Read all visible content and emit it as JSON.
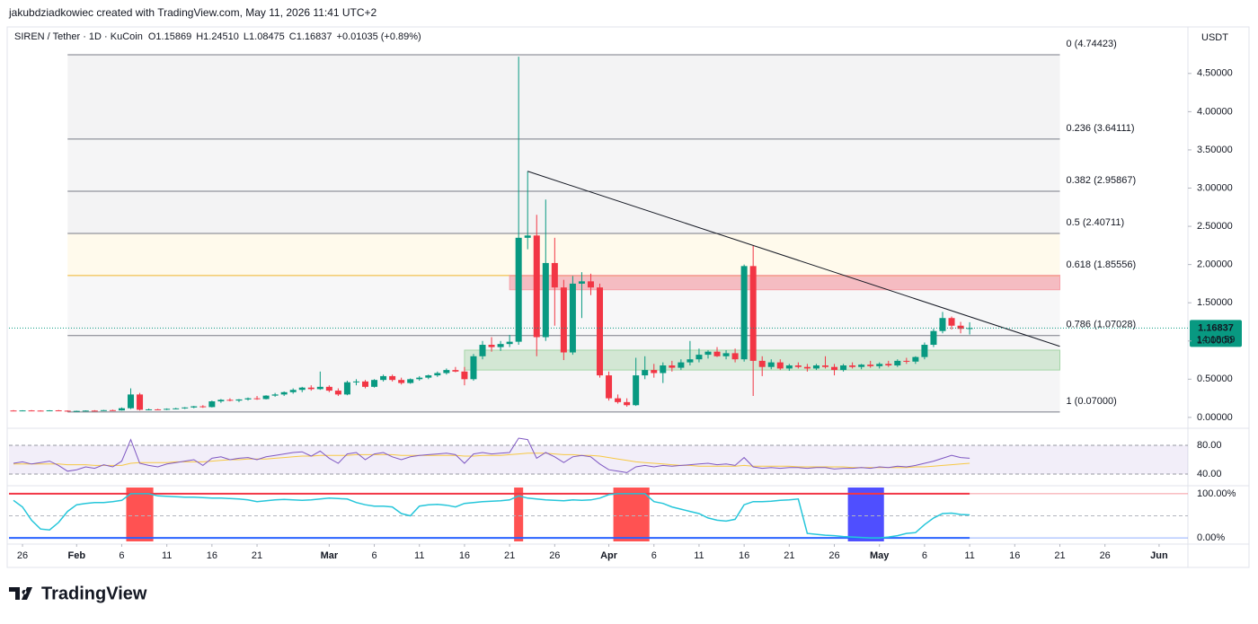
{
  "attribution": "jakubdziadkowiec created with TradingView.com, May 11, 2026 11:41 UTC+2",
  "brand": "TradingView",
  "chart_data": {
    "type": "candlestick",
    "title": "SIREN / Tether · 1D · KuCoin",
    "ohlc_text": [
      "O",
      "1.15869",
      "H",
      "1.24510",
      "L",
      "1.08475",
      "C",
      "1.16837",
      "+0.01035 (+0.89%)"
    ],
    "currency": "USDT",
    "x": [
      "2026-01-25",
      "2026-01-26",
      "2026-01-27",
      "2026-01-28",
      "2026-01-29",
      "2026-01-30",
      "2026-01-31",
      "2026-02-01",
      "2026-02-02",
      "2026-02-03",
      "2026-02-04",
      "2026-02-05",
      "2026-02-06",
      "2026-02-07",
      "2026-02-08",
      "2026-02-09",
      "2026-02-10",
      "2026-02-11",
      "2026-02-12",
      "2026-02-13",
      "2026-02-14",
      "2026-02-15",
      "2026-02-16",
      "2026-02-17",
      "2026-02-18",
      "2026-02-19",
      "2026-02-20",
      "2026-02-21",
      "2026-02-22",
      "2026-02-23",
      "2026-02-24",
      "2026-02-25",
      "2026-02-26",
      "2026-02-27",
      "2026-02-28",
      "2026-03-01",
      "2026-03-02",
      "2026-03-03",
      "2026-03-04",
      "2026-03-05",
      "2026-03-06",
      "2026-03-07",
      "2026-03-08",
      "2026-03-09",
      "2026-03-10",
      "2026-03-11",
      "2026-03-12",
      "2026-03-13",
      "2026-03-14",
      "2026-03-15",
      "2026-03-16",
      "2026-03-17",
      "2026-03-18",
      "2026-03-19",
      "2026-03-20",
      "2026-03-21",
      "2026-03-22",
      "2026-03-23",
      "2026-03-24",
      "2026-03-25",
      "2026-03-26",
      "2026-03-27",
      "2026-03-28",
      "2026-03-29",
      "2026-03-30",
      "2026-03-31",
      "2026-04-01",
      "2026-04-02",
      "2026-04-03",
      "2026-04-04",
      "2026-04-05",
      "2026-04-06",
      "2026-04-07",
      "2026-04-08",
      "2026-04-09",
      "2026-04-10",
      "2026-04-11",
      "2026-04-12",
      "2026-04-13",
      "2026-04-14",
      "2026-04-15",
      "2026-04-16",
      "2026-04-17",
      "2026-04-18",
      "2026-04-19",
      "2026-04-20",
      "2026-04-21",
      "2026-04-22",
      "2026-04-23",
      "2026-04-24",
      "2026-04-25",
      "2026-04-26",
      "2026-04-27",
      "2026-04-28",
      "2026-04-29",
      "2026-04-30",
      "2026-05-01",
      "2026-05-02",
      "2026-05-03",
      "2026-05-04",
      "2026-05-05",
      "2026-05-06",
      "2026-05-07",
      "2026-05-08",
      "2026-05-09",
      "2026-05-10",
      "2026-05-11"
    ],
    "open": [
      0.09,
      0.088,
      0.091,
      0.089,
      0.087,
      0.092,
      0.088,
      0.08,
      0.085,
      0.089,
      0.087,
      0.095,
      0.091,
      0.12,
      0.3,
      0.1,
      0.105,
      0.1,
      0.112,
      0.118,
      0.13,
      0.145,
      0.135,
      0.21,
      0.23,
      0.22,
      0.235,
      0.25,
      0.24,
      0.285,
      0.3,
      0.33,
      0.36,
      0.39,
      0.37,
      0.4,
      0.35,
      0.3,
      0.46,
      0.47,
      0.4,
      0.49,
      0.54,
      0.49,
      0.45,
      0.5,
      0.52,
      0.55,
      0.58,
      0.62,
      0.6,
      0.5,
      0.8,
      0.95,
      0.92,
      0.96,
      0.99,
      2.35,
      2.38,
      1.05,
      2.02,
      1.7,
      0.85,
      1.75,
      1.78,
      1.7,
      0.55,
      0.25,
      0.2,
      0.16,
      0.55,
      0.62,
      0.58,
      0.68,
      0.65,
      0.72,
      0.76,
      0.82,
      0.86,
      0.8,
      0.84,
      0.76,
      1.98,
      0.74,
      0.66,
      0.72,
      0.64,
      0.68,
      0.66,
      0.64,
      0.68,
      0.66,
      0.62,
      0.68,
      0.66,
      0.69,
      0.67,
      0.7,
      0.68,
      0.74,
      0.73,
      0.79,
      0.95,
      1.13,
      1.3,
      1.2,
      1.15869
    ],
    "high": [
      0.095,
      0.094,
      0.096,
      0.093,
      0.095,
      0.097,
      0.092,
      0.088,
      0.092,
      0.095,
      0.098,
      0.102,
      0.13,
      0.38,
      0.32,
      0.115,
      0.112,
      0.118,
      0.125,
      0.135,
      0.15,
      0.16,
      0.22,
      0.24,
      0.25,
      0.24,
      0.26,
      0.28,
      0.29,
      0.32,
      0.34,
      0.38,
      0.4,
      0.42,
      0.6,
      0.42,
      0.38,
      0.48,
      0.5,
      0.49,
      0.5,
      0.56,
      0.56,
      0.52,
      0.51,
      0.54,
      0.56,
      0.6,
      0.64,
      0.66,
      0.66,
      0.83,
      1.0,
      1.05,
      1.0,
      1.08,
      4.72,
      3.22,
      2.65,
      2.85,
      2.35,
      1.8,
      1.85,
      1.9,
      1.88,
      1.75,
      0.6,
      0.3,
      0.25,
      0.78,
      0.8,
      0.7,
      0.72,
      0.74,
      0.76,
      1.0,
      0.9,
      0.88,
      0.92,
      0.88,
      0.9,
      2.0,
      2.25,
      0.8,
      0.76,
      0.76,
      0.7,
      0.72,
      0.7,
      0.7,
      0.8,
      0.7,
      0.7,
      0.72,
      0.7,
      0.74,
      0.72,
      0.74,
      0.76,
      0.78,
      0.8,
      0.98,
      1.16,
      1.38,
      1.32,
      1.25,
      1.2451
    ],
    "low": [
      0.086,
      0.085,
      0.087,
      0.084,
      0.085,
      0.086,
      0.074,
      0.075,
      0.081,
      0.084,
      0.085,
      0.088,
      0.089,
      0.11,
      0.09,
      0.092,
      0.095,
      0.096,
      0.105,
      0.11,
      0.12,
      0.125,
      0.13,
      0.19,
      0.21,
      0.2,
      0.22,
      0.23,
      0.235,
      0.27,
      0.28,
      0.31,
      0.33,
      0.35,
      0.36,
      0.33,
      0.28,
      0.29,
      0.42,
      0.38,
      0.39,
      0.47,
      0.47,
      0.43,
      0.44,
      0.48,
      0.5,
      0.53,
      0.56,
      0.59,
      0.42,
      0.48,
      0.76,
      0.86,
      0.87,
      0.92,
      0.95,
      2.2,
      0.8,
      1.0,
      1.2,
      0.75,
      0.82,
      1.3,
      1.6,
      0.52,
      0.22,
      0.18,
      0.14,
      0.15,
      0.5,
      0.52,
      0.45,
      0.6,
      0.62,
      0.68,
      0.72,
      0.77,
      0.79,
      0.76,
      0.72,
      0.73,
      0.28,
      0.54,
      0.63,
      0.62,
      0.61,
      0.64,
      0.6,
      0.62,
      0.64,
      0.55,
      0.6,
      0.64,
      0.63,
      0.65,
      0.64,
      0.66,
      0.66,
      0.7,
      0.7,
      0.76,
      0.92,
      1.1,
      1.15,
      1.1,
      1.08475
    ],
    "close": [
      0.088,
      0.091,
      0.089,
      0.087,
      0.092,
      0.088,
      0.08,
      0.085,
      0.089,
      0.087,
      0.095,
      0.091,
      0.12,
      0.3,
      0.1,
      0.105,
      0.1,
      0.112,
      0.118,
      0.13,
      0.145,
      0.135,
      0.21,
      0.23,
      0.22,
      0.235,
      0.25,
      0.24,
      0.285,
      0.3,
      0.33,
      0.36,
      0.39,
      0.37,
      0.4,
      0.35,
      0.3,
      0.46,
      0.47,
      0.4,
      0.49,
      0.54,
      0.49,
      0.45,
      0.5,
      0.52,
      0.55,
      0.58,
      0.62,
      0.6,
      0.5,
      0.8,
      0.95,
      0.92,
      0.96,
      0.99,
      2.35,
      2.38,
      1.05,
      2.02,
      1.7,
      0.85,
      1.75,
      1.78,
      1.7,
      0.55,
      0.25,
      0.2,
      0.16,
      0.55,
      0.62,
      0.58,
      0.68,
      0.65,
      0.72,
      0.76,
      0.82,
      0.86,
      0.8,
      0.84,
      0.76,
      1.98,
      0.74,
      0.66,
      0.72,
      0.64,
      0.68,
      0.66,
      0.64,
      0.68,
      0.66,
      0.62,
      0.68,
      0.66,
      0.69,
      0.67,
      0.7,
      0.68,
      0.74,
      0.73,
      0.79,
      0.95,
      1.13,
      1.3,
      1.2,
      1.15869,
      1.16837
    ],
    "up_color": "#089981",
    "down_color": "#f23645",
    "xlim": [
      "2026-01-25",
      "2026-06-03"
    ],
    "xticks": [
      {
        "value": "2026-01-26",
        "label": "26"
      },
      {
        "value": "2026-02-01",
        "label": "Feb"
      },
      {
        "value": "2026-02-06",
        "label": "6"
      },
      {
        "value": "2026-02-11",
        "label": "11"
      },
      {
        "value": "2026-02-16",
        "label": "16"
      },
      {
        "value": "2026-02-21",
        "label": "21"
      },
      {
        "value": "2026-03-01",
        "label": "Mar"
      },
      {
        "value": "2026-03-06",
        "label": "6"
      },
      {
        "value": "2026-03-11",
        "label": "11"
      },
      {
        "value": "2026-03-16",
        "label": "16"
      },
      {
        "value": "2026-03-21",
        "label": "21"
      },
      {
        "value": "2026-03-26",
        "label": "26"
      },
      {
        "value": "2026-04-01",
        "label": "Apr"
      },
      {
        "value": "2026-04-06",
        "label": "6"
      },
      {
        "value": "2026-04-11",
        "label": "11"
      },
      {
        "value": "2026-04-16",
        "label": "16"
      },
      {
        "value": "2026-04-21",
        "label": "21"
      },
      {
        "value": "2026-04-26",
        "label": "26"
      },
      {
        "value": "2026-05-01",
        "label": "May"
      },
      {
        "value": "2026-05-06",
        "label": "6"
      },
      {
        "value": "2026-05-11",
        "label": "11"
      },
      {
        "value": "2026-05-16",
        "label": "16"
      },
      {
        "value": "2026-05-21",
        "label": "21"
      },
      {
        "value": "2026-05-26",
        "label": "26"
      },
      {
        "value": "2026-06-01",
        "label": "Jun"
      }
    ],
    "ylim": [
      -0.06,
      5.05
    ],
    "yticks": [
      {
        "value": 0,
        "label": "0.00000"
      },
      {
        "value": 0.5,
        "label": "0.50000"
      },
      {
        "value": 1,
        "label": "1.00000"
      },
      {
        "value": 1.5,
        "label": "1.50000"
      },
      {
        "value": 2,
        "label": "2.00000"
      },
      {
        "value": 2.5,
        "label": "2.50000"
      },
      {
        "value": 3,
        "label": "3.00000"
      },
      {
        "value": 3.5,
        "label": "3.50000"
      },
      {
        "value": 4,
        "label": "4.00000"
      },
      {
        "value": 4.5,
        "label": "4.50000"
      }
    ],
    "last_price": {
      "value": 1.16837,
      "label": "1.16837"
    },
    "countdown": "14:18:59",
    "fib": {
      "from": "2026-01-31",
      "to": "2026-05-21",
      "levels": [
        {
          "value": 4.74423,
          "label": "0 (4.74423)",
          "color": "#787b86",
          "fill": "#f3f3f4"
        },
        {
          "value": 3.64111,
          "label": "0.236 (3.64111)",
          "color": "#787b86",
          "fill": "#f5f5f6"
        },
        {
          "value": 2.95867,
          "label": "0.382 (2.95867)",
          "color": "#787b86",
          "fill": "#f3f3f4"
        },
        {
          "value": 2.40711,
          "label": "0.5 (2.40711)",
          "color": "#787b86",
          "fill": "#fffaec"
        },
        {
          "value": 1.85556,
          "label": "0.618 (1.85556)",
          "color": "#f0b429",
          "fill": "#f7f7f8"
        },
        {
          "value": 1.07028,
          "label": "0.786 (1.07028)",
          "color": "#787b86",
          "fill": "#f5f5f6"
        },
        {
          "value": 0.07,
          "label": "1 (0.07000)",
          "color": "#787b86"
        }
      ]
    },
    "zones": [
      {
        "from": "2026-03-21",
        "to": "2026-05-21",
        "low": 1.67,
        "high": 1.86,
        "color": "rgba(242,54,69,0.3)",
        "stroke": "#f7a1a9"
      },
      {
        "from": "2026-03-16",
        "to": "2026-05-21",
        "low": 0.62,
        "high": 0.88,
        "color": "rgba(76,175,80,0.2)",
        "stroke": "#a5d6a7"
      }
    ],
    "trendline": {
      "from": "2026-03-23",
      "to": "2026-05-21",
      "start": 3.22,
      "end": 0.93,
      "color": "#131722"
    },
    "rsi": {
      "color": "#7e57c2",
      "ma_color": "#f7c843",
      "ylim": [
        25,
        100
      ],
      "yticks": [
        {
          "value": 80,
          "label": "80.00"
        },
        {
          "value": 40,
          "label": "40.00"
        }
      ],
      "values": [
        55,
        57,
        54,
        56,
        58,
        52,
        44,
        46,
        50,
        48,
        53,
        50,
        58,
        88,
        55,
        52,
        50,
        54,
        56,
        58,
        60,
        52,
        62,
        64,
        60,
        62,
        63,
        60,
        64,
        66,
        68,
        70,
        71,
        65,
        72,
        62,
        55,
        68,
        70,
        60,
        68,
        70,
        64,
        60,
        64,
        66,
        67,
        68,
        69,
        67,
        55,
        68,
        70,
        68,
        69,
        70,
        90,
        88,
        62,
        70,
        64,
        56,
        64,
        66,
        64,
        54,
        46,
        44,
        42,
        50,
        52,
        50,
        52,
        51,
        52,
        53,
        54,
        55,
        53,
        54,
        52,
        63,
        50,
        48,
        49,
        48,
        49,
        49,
        48,
        49,
        49,
        47,
        48,
        48,
        49,
        48,
        50,
        49,
        51,
        50,
        52,
        55,
        58,
        62,
        66,
        63,
        62
      ],
      "ma": [
        54,
        54,
        54,
        54,
        54,
        54,
        53,
        53,
        53,
        52,
        52,
        52,
        52,
        55,
        56,
        56,
        56,
        56,
        57,
        57,
        57,
        57,
        58,
        59,
        60,
        60,
        61,
        61,
        61,
        62,
        63,
        64,
        65,
        65,
        66,
        66,
        66,
        66,
        67,
        67,
        67,
        67,
        67,
        66,
        66,
        66,
        66,
        66,
        66,
        66,
        65,
        65,
        66,
        66,
        66,
        67,
        68,
        69,
        69,
        69,
        68,
        67,
        67,
        66,
        66,
        65,
        63,
        61,
        59,
        57,
        56,
        55,
        54,
        53,
        52,
        52,
        51,
        51,
        51,
        51,
        51,
        52,
        51,
        51,
        51,
        51,
        51,
        50,
        50,
        50,
        50,
        50,
        50,
        49,
        49,
        49,
        49,
        49,
        49,
        49,
        50,
        50,
        51,
        52,
        53,
        54,
        55
      ]
    },
    "oscillator": {
      "color": "#26c6da",
      "ylim": [
        -8,
        114
      ],
      "yticks": [
        {
          "value": 100,
          "label": "100.00%"
        },
        {
          "value": 0,
          "label": "0.00%"
        }
      ],
      "values": [
        85,
        70,
        40,
        20,
        18,
        35,
        60,
        75,
        78,
        80,
        80,
        82,
        85,
        100,
        100,
        100,
        95,
        94,
        93,
        92,
        92,
        91,
        90,
        90,
        89,
        88,
        86,
        82,
        84,
        86,
        87,
        86,
        85,
        86,
        88,
        90,
        89,
        88,
        80,
        75,
        72,
        72,
        70,
        55,
        50,
        72,
        75,
        76,
        74,
        70,
        78,
        80,
        82,
        83,
        84,
        86,
        95,
        90,
        88,
        86,
        85,
        84,
        86,
        85,
        86,
        90,
        98,
        100,
        100,
        100,
        100,
        82,
        78,
        70,
        65,
        60,
        55,
        45,
        40,
        38,
        42,
        75,
        82,
        82,
        83,
        85,
        86,
        88,
        10,
        8,
        6,
        5,
        3,
        2,
        1,
        0,
        0,
        2,
        5,
        10,
        12,
        30,
        45,
        55,
        56,
        53,
        52
      ],
      "blocks": [
        {
          "from": "2026-02-07",
          "to": "2026-02-09",
          "color": "#ff5252"
        },
        {
          "from": "2026-03-22",
          "to": "2026-03-22",
          "color": "#ff5252"
        },
        {
          "from": "2026-04-02",
          "to": "2026-04-05",
          "color": "#ff5252"
        },
        {
          "from": "2026-04-28",
          "to": "2026-05-01",
          "color": "#4f4fff"
        }
      ]
    }
  }
}
